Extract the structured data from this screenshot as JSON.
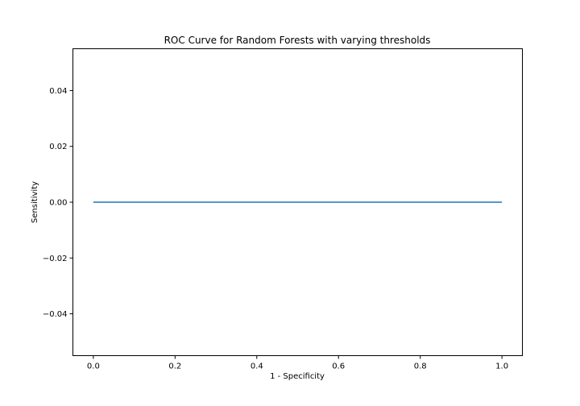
{
  "chart_data": {
    "type": "line",
    "title": "ROC Curve for Random Forests with varying thresholds",
    "xlabel": "1 - Specificity",
    "ylabel": "Sensitivity",
    "xlim": [
      -0.05,
      1.05
    ],
    "ylim": [
      -0.055,
      0.055
    ],
    "x_ticks": [
      0.0,
      0.2,
      0.4,
      0.6,
      0.8,
      1.0
    ],
    "x_tick_labels": [
      "0.0",
      "0.2",
      "0.4",
      "0.6",
      "0.8",
      "1.0"
    ],
    "y_ticks": [
      0.04,
      0.02,
      0.0,
      -0.02,
      -0.04
    ],
    "y_tick_labels": [
      "0.04",
      "0.02",
      "0.00",
      "−0.02",
      "−0.04"
    ],
    "grid": false,
    "series": [
      {
        "x": [
          0.0,
          1.0
        ],
        "y": [
          0.0,
          0.0
        ],
        "color": "#1f77b4"
      }
    ]
  }
}
